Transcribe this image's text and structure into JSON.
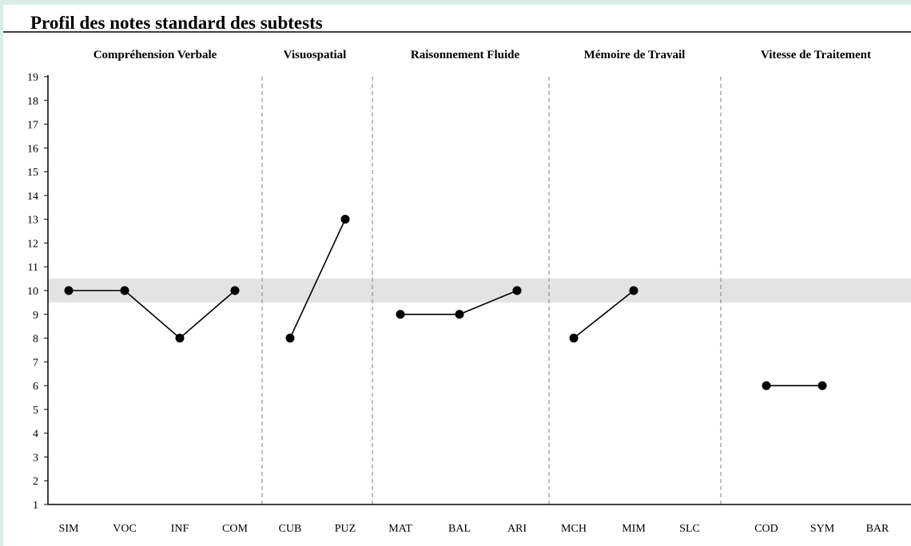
{
  "chart_data": {
    "type": "line",
    "title": "Profil des notes standard des subtests",
    "ylim": [
      1,
      19
    ],
    "yticks": [
      1,
      2,
      3,
      4,
      5,
      6,
      7,
      8,
      9,
      10,
      11,
      12,
      13,
      14,
      15,
      16,
      17,
      18,
      19
    ],
    "norm_band": [
      9.5,
      10.5
    ],
    "grid": false,
    "categories": [
      "SIM",
      "VOC",
      "INF",
      "COM",
      "CUB",
      "PUZ",
      "MAT",
      "BAL",
      "ARI",
      "MCH",
      "MIM",
      "SLC",
      "COD",
      "SYM",
      "BAR"
    ],
    "groups": [
      {
        "name": "Compréhension Verbale",
        "categories": [
          "SIM",
          "VOC",
          "INF",
          "COM"
        ],
        "values": [
          10,
          10,
          8,
          10
        ]
      },
      {
        "name": "Visuospatial",
        "categories": [
          "CUB",
          "PUZ"
        ],
        "values": [
          8,
          13
        ]
      },
      {
        "name": "Raisonnement Fluide",
        "categories": [
          "MAT",
          "BAL",
          "ARI"
        ],
        "values": [
          9,
          9,
          10
        ]
      },
      {
        "name": "Mémoire de Travail",
        "categories": [
          "MCH",
          "MIM",
          "SLC"
        ],
        "values": [
          8,
          10,
          null
        ]
      },
      {
        "name": "Vitesse de Traitement",
        "categories": [
          "COD",
          "SYM",
          "BAR"
        ],
        "values": [
          6,
          6,
          null
        ]
      }
    ],
    "colors": {
      "line": "#000000",
      "point": "#000000",
      "band": "#e3e3e3",
      "divider": "#7f7f7f"
    }
  }
}
